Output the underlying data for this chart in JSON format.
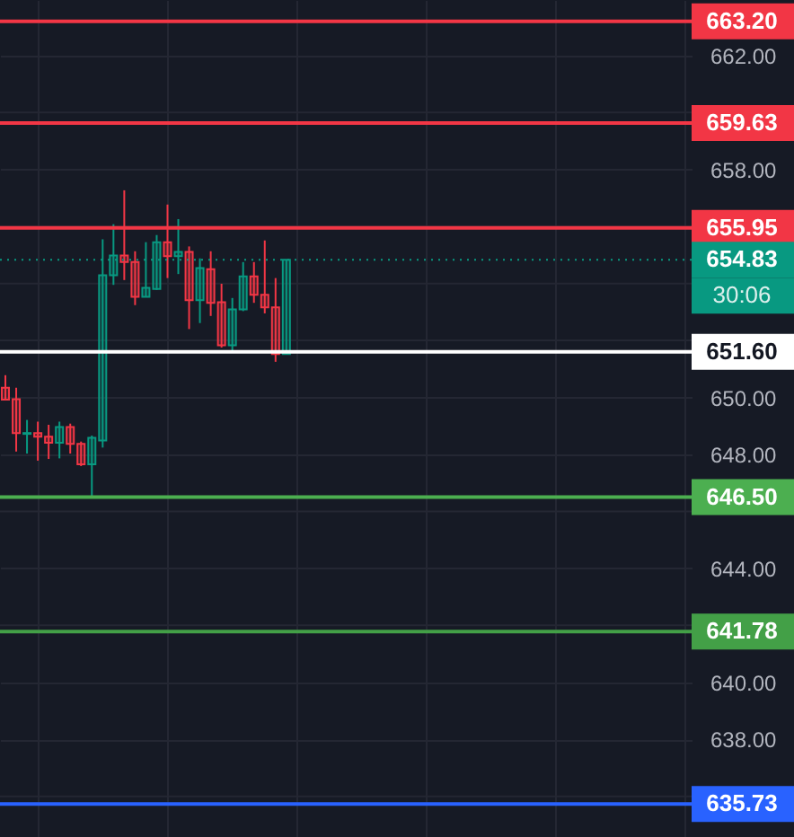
{
  "chart_data": {
    "type": "candlestick",
    "categories": [
      null,
      null,
      null,
      null,
      null,
      null,
      null,
      null,
      null,
      null,
      null,
      null,
      null,
      null,
      null,
      null,
      null,
      null,
      null,
      null,
      null,
      null,
      null,
      null,
      null,
      null,
      null,
      null,
      null,
      null,
      null,
      null,
      null,
      null,
      null,
      null,
      null,
      null,
      null,
      null,
      null,
      null,
      null,
      null,
      null,
      null,
      null,
      null,
      null,
      null,
      null,
      null,
      null,
      null,
      null,
      null,
      null,
      null,
      null,
      null,
      null,
      null,
      null,
      null
    ],
    "ohlc": [
      [
        650.34,
        650.78,
        649.92,
        649.92
      ],
      [
        649.94,
        650.34,
        648.1,
        648.75
      ],
      [
        648.72,
        649.21,
        648.03,
        648.75
      ],
      [
        648.75,
        649.15,
        647.78,
        648.62
      ],
      [
        648.62,
        649.04,
        647.84,
        648.41
      ],
      [
        648.41,
        649.15,
        647.86,
        648.96
      ],
      [
        648.96,
        649.08,
        648.03,
        648.37
      ],
      [
        648.37,
        648.45,
        647.59,
        647.65
      ],
      [
        647.65,
        648.66,
        646.48,
        648.58
      ],
      [
        648.49,
        655.55,
        648.24,
        654.29
      ],
      [
        654.29,
        656.08,
        653.95,
        654.98
      ],
      [
        654.98,
        657.27,
        654.12,
        654.75
      ],
      [
        654.75,
        655.13,
        653.24,
        653.53
      ],
      [
        653.53,
        655.45,
        653.53,
        653.85
      ],
      [
        653.81,
        655.7,
        653.77,
        655.45
      ],
      [
        655.45,
        656.77,
        654.19,
        654.96
      ],
      [
        654.96,
        656.26,
        654.33,
        655.11
      ],
      [
        655.11,
        655.3,
        652.4,
        653.41
      ],
      [
        653.41,
        654.88,
        652.61,
        654.54
      ],
      [
        654.5,
        655.13,
        652.86,
        653.32
      ],
      [
        653.34,
        653.99,
        651.75,
        651.83
      ],
      [
        651.83,
        653.49,
        651.62,
        653.09
      ],
      [
        653.09,
        654.75,
        653.03,
        654.25
      ],
      [
        654.25,
        654.75,
        653.32,
        653.6
      ],
      [
        653.6,
        655.51,
        652.95,
        653.16
      ],
      [
        653.16,
        654.19,
        651.25,
        651.52
      ],
      [
        651.52,
        654.83,
        651.52,
        654.83
      ],
      null,
      null,
      null,
      null,
      null,
      null,
      null,
      null,
      null,
      null,
      null,
      null,
      null,
      null,
      null,
      null,
      null,
      null,
      null,
      null,
      null,
      null,
      null,
      null,
      null,
      null,
      null,
      null,
      null,
      null,
      null,
      null,
      null,
      null,
      null,
      null,
      null
    ],
    "ylim": [
      634.57,
      663.95
    ],
    "yticks": [
      {
        "value": 636,
        "label": null
      },
      {
        "value": 638,
        "label": "638.00"
      },
      {
        "value": 640,
        "label": "640.00"
      },
      {
        "value": 642,
        "label": null
      },
      {
        "value": 644,
        "label": "644.00"
      },
      {
        "value": 646,
        "label": null
      },
      {
        "value": 648,
        "label": "648.00"
      },
      {
        "value": 650,
        "label": "650.00"
      },
      {
        "value": 652,
        "label": null
      },
      {
        "value": 654,
        "label": null
      },
      {
        "value": 656,
        "label": null
      },
      {
        "value": 658,
        "label": "658.00"
      },
      {
        "value": 660,
        "label": null
      },
      {
        "value": 662,
        "label": "662.00"
      }
    ],
    "grid": true,
    "ref_lines": [
      {
        "axis": "y",
        "value": 663.2,
        "label": "663.20",
        "color": "#f23645"
      },
      {
        "axis": "y",
        "value": 659.63,
        "label": "659.63",
        "color": "#f23645"
      },
      {
        "axis": "y",
        "value": 655.95,
        "label": "655.95",
        "color": "#f23645"
      },
      {
        "axis": "y",
        "value": 654.83,
        "label": "654.83",
        "color": "#089981",
        "line_style": "dotted"
      },
      {
        "axis": "y",
        "value": 651.6,
        "label": "651.60",
        "color": "#ffffff"
      },
      {
        "axis": "y",
        "value": 646.5,
        "label": "646.50",
        "color": "#4caf50"
      },
      {
        "axis": "y",
        "value": 641.78,
        "label": "641.78",
        "color": "#43a047"
      },
      {
        "axis": "y",
        "value": 635.73,
        "label": "635.73",
        "color": "#2962ff"
      }
    ],
    "annotations": [
      "30:06"
    ]
  }
}
